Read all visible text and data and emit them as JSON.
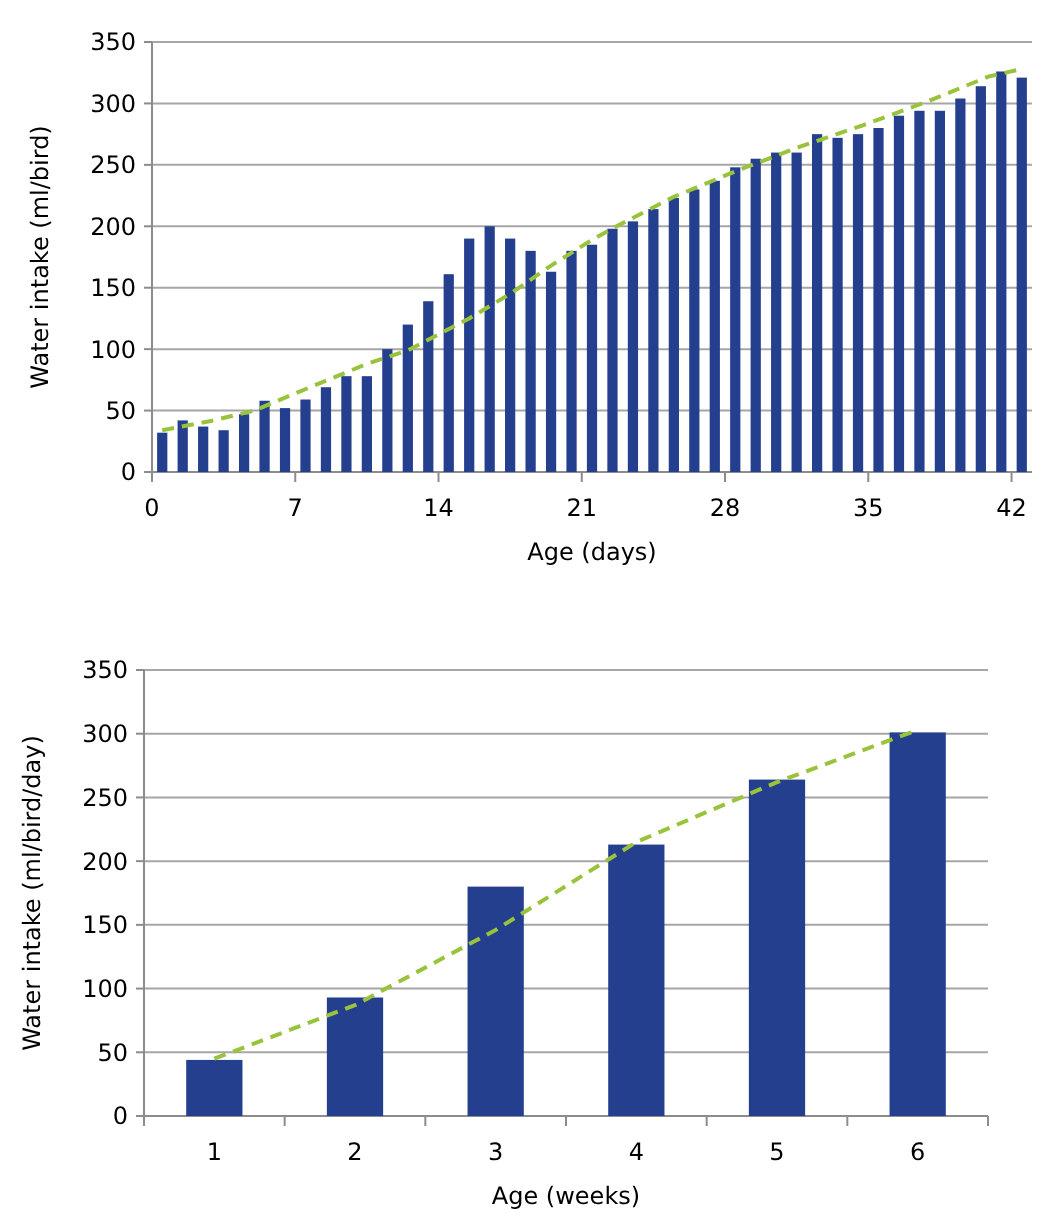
{
  "chart_data": [
    {
      "type": "bar",
      "xlabel": "Age (days)",
      "ylabel": "Water intake (ml/bird)",
      "x": [
        0.5,
        1.5,
        2.5,
        3.5,
        4.5,
        5.5,
        6.5,
        7.5,
        8.5,
        9.5,
        10.5,
        11.5,
        12.5,
        13.5,
        14.5,
        15.5,
        16.5,
        17.5,
        18.5,
        19.5,
        20.5,
        21.5,
        22.5,
        23.5,
        24.5,
        25.5,
        26.5,
        27.5,
        28.5,
        29.5,
        30.5,
        31.5,
        32.5,
        33.5,
        34.5,
        35.5,
        36.5,
        37.5,
        38.5,
        39.5,
        40.5,
        41.5,
        42.5
      ],
      "xlim": [
        0,
        43
      ],
      "xticks": [
        0,
        7,
        14,
        21,
        28,
        35,
        42
      ],
      "ylim": [
        0,
        350
      ],
      "yticks": [
        0,
        50,
        100,
        150,
        200,
        250,
        300,
        350
      ],
      "grid": "y",
      "series": [
        {
          "color": "#253f8f",
          "values": [
            32,
            42,
            37,
            34,
            47,
            58,
            52,
            59,
            69,
            78,
            78,
            100,
            120,
            139,
            161,
            190,
            200,
            190,
            180,
            163,
            180,
            185,
            198,
            204,
            214,
            223,
            230,
            237,
            248,
            255,
            260,
            260,
            275,
            272,
            275,
            280,
            290,
            294,
            294,
            304,
            314,
            326,
            321
          ]
        },
        {
          "type": "line",
          "color": "#9ac33c",
          "line_style": "dashed",
          "marker": "none",
          "x": [
            0.5,
            3,
            5,
            7,
            10.5,
            12.5,
            15.5,
            17.5,
            19.5,
            21.5,
            22.7,
            25.5,
            28.7,
            31.7,
            34.7,
            37.8,
            40.9,
            42.5
          ],
          "values": [
            34,
            42,
            50,
            64,
            88,
            99,
            125,
            145,
            168,
            189,
            200,
            224,
            246,
            265,
            282,
            301,
            322,
            328
          ]
        }
      ]
    },
    {
      "type": "bar",
      "xlabel": "Age (weeks)",
      "ylabel": "Water intake (ml/bird/day)",
      "categories": [
        "1",
        "2",
        "3",
        "4",
        "5",
        "6"
      ],
      "ylim": [
        0,
        350
      ],
      "yticks": [
        0,
        50,
        100,
        150,
        200,
        250,
        300,
        350
      ],
      "grid": "y",
      "series": [
        {
          "color": "#253f8f",
          "values": [
            44,
            93,
            180,
            213,
            264,
            301
          ]
        },
        {
          "type": "line",
          "color": "#9ac33c",
          "line_style": "dashed",
          "marker": "none",
          "values": [
            45,
            87,
            146,
            215,
            262,
            303
          ]
        }
      ]
    }
  ]
}
